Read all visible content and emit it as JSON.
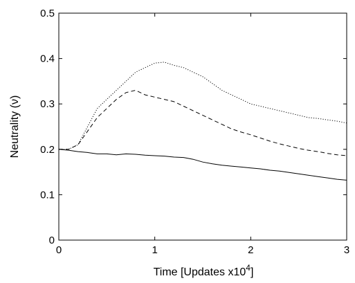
{
  "chart_data": {
    "type": "line",
    "xlabel": "Time [Updates x10",
    "xlabel_exponent": "4",
    "xlabel_suffix": "]",
    "ylabel": "Neutrality (ν)",
    "xlim": [
      0,
      3
    ],
    "ylim": [
      0,
      0.5
    ],
    "x_ticks": [
      "0",
      "1",
      "2",
      "3"
    ],
    "y_ticks": [
      "0",
      "0.1",
      "0.2",
      "0.3",
      "0.4",
      "0.5"
    ],
    "grid": false,
    "legend": "none",
    "series": [
      {
        "style": "dotted",
        "points": [
          [
            0,
            0.2
          ],
          [
            0.1,
            0.2
          ],
          [
            0.2,
            0.21
          ],
          [
            0.3,
            0.25
          ],
          [
            0.4,
            0.29
          ],
          [
            0.5,
            0.31
          ],
          [
            0.6,
            0.33
          ],
          [
            0.7,
            0.35
          ],
          [
            0.8,
            0.37
          ],
          [
            0.9,
            0.38
          ],
          [
            1.0,
            0.39
          ],
          [
            1.1,
            0.392
          ],
          [
            1.2,
            0.385
          ],
          [
            1.3,
            0.38
          ],
          [
            1.4,
            0.37
          ],
          [
            1.5,
            0.36
          ],
          [
            1.6,
            0.345
          ],
          [
            1.7,
            0.33
          ],
          [
            1.8,
            0.32
          ],
          [
            1.9,
            0.31
          ],
          [
            2.0,
            0.3
          ],
          [
            2.1,
            0.295
          ],
          [
            2.2,
            0.29
          ],
          [
            2.3,
            0.285
          ],
          [
            2.4,
            0.28
          ],
          [
            2.5,
            0.275
          ],
          [
            2.6,
            0.27
          ],
          [
            2.7,
            0.268
          ],
          [
            2.8,
            0.265
          ],
          [
            2.9,
            0.262
          ],
          [
            3.0,
            0.258
          ]
        ]
      },
      {
        "style": "dashed",
        "points": [
          [
            0,
            0.2
          ],
          [
            0.1,
            0.2
          ],
          [
            0.2,
            0.21
          ],
          [
            0.3,
            0.24
          ],
          [
            0.4,
            0.27
          ],
          [
            0.5,
            0.29
          ],
          [
            0.6,
            0.31
          ],
          [
            0.7,
            0.325
          ],
          [
            0.8,
            0.33
          ],
          [
            0.9,
            0.32
          ],
          [
            1.0,
            0.315
          ],
          [
            1.1,
            0.31
          ],
          [
            1.2,
            0.305
          ],
          [
            1.3,
            0.295
          ],
          [
            1.4,
            0.285
          ],
          [
            1.5,
            0.275
          ],
          [
            1.6,
            0.265
          ],
          [
            1.7,
            0.255
          ],
          [
            1.8,
            0.245
          ],
          [
            1.9,
            0.238
          ],
          [
            2.0,
            0.232
          ],
          [
            2.1,
            0.225
          ],
          [
            2.2,
            0.218
          ],
          [
            2.3,
            0.212
          ],
          [
            2.4,
            0.207
          ],
          [
            2.5,
            0.202
          ],
          [
            2.6,
            0.198
          ],
          [
            2.7,
            0.195
          ],
          [
            2.8,
            0.191
          ],
          [
            2.9,
            0.188
          ],
          [
            3.0,
            0.186
          ]
        ]
      },
      {
        "style": "solid",
        "points": [
          [
            0,
            0.2
          ],
          [
            0.1,
            0.198
          ],
          [
            0.2,
            0.195
          ],
          [
            0.3,
            0.193
          ],
          [
            0.4,
            0.19
          ],
          [
            0.5,
            0.19
          ],
          [
            0.6,
            0.188
          ],
          [
            0.7,
            0.19
          ],
          [
            0.8,
            0.189
          ],
          [
            0.9,
            0.187
          ],
          [
            1.0,
            0.186
          ],
          [
            1.1,
            0.185
          ],
          [
            1.2,
            0.183
          ],
          [
            1.3,
            0.182
          ],
          [
            1.4,
            0.178
          ],
          [
            1.5,
            0.172
          ],
          [
            1.6,
            0.168
          ],
          [
            1.7,
            0.165
          ],
          [
            1.8,
            0.163
          ],
          [
            1.9,
            0.161
          ],
          [
            2.0,
            0.159
          ],
          [
            2.1,
            0.157
          ],
          [
            2.2,
            0.154
          ],
          [
            2.3,
            0.152
          ],
          [
            2.4,
            0.149
          ],
          [
            2.5,
            0.146
          ],
          [
            2.6,
            0.143
          ],
          [
            2.7,
            0.14
          ],
          [
            2.8,
            0.137
          ],
          [
            2.9,
            0.134
          ],
          [
            3.0,
            0.132
          ]
        ]
      }
    ]
  }
}
